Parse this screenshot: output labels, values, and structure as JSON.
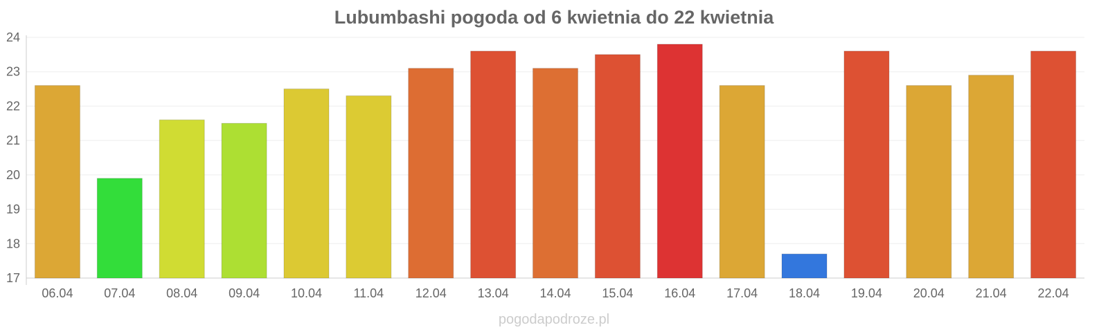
{
  "chart_data": {
    "type": "bar",
    "title": "Lubumbashi pogoda od 6 kwietnia do 22 kwietnia",
    "xlabel": "",
    "ylabel": "",
    "ylim": [
      17,
      24
    ],
    "yticks": [
      17,
      18,
      19,
      20,
      21,
      22,
      23,
      24
    ],
    "categories": [
      "06.04",
      "07.04",
      "08.04",
      "09.04",
      "10.04",
      "11.04",
      "12.04",
      "13.04",
      "14.04",
      "15.04",
      "16.04",
      "17.04",
      "18.04",
      "19.04",
      "20.04",
      "21.04",
      "22.04"
    ],
    "values": [
      22.6,
      19.9,
      21.6,
      21.5,
      22.5,
      22.3,
      23.1,
      23.6,
      23.1,
      23.5,
      23.8,
      22.6,
      17.7,
      23.6,
      22.6,
      22.9,
      23.6
    ],
    "colors": [
      "#dca735",
      "#33dd3a",
      "#d0dc33",
      "#addf33",
      "#dcc933",
      "#dccb33",
      "#dd6d33",
      "#dd5133",
      "#dd6f33",
      "#dd5133",
      "#dd3333",
      "#dca735",
      "#3377dd",
      "#dd5133",
      "#dca735",
      "#dca735",
      "#dd5133"
    ],
    "grid": true,
    "legend": "none"
  },
  "footer": {
    "watermark": "pogodapodroze.pl"
  }
}
